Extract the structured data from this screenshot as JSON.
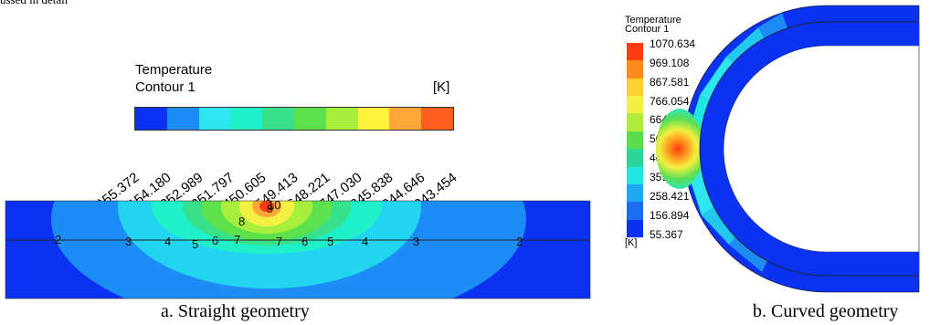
{
  "top_cut_text": "ussed in detail",
  "straight": {
    "legend_title": "Temperature",
    "legend_subtitle": "Contour 1",
    "legend_unit": "[K]",
    "legend_colors": [
      "#0a32f0",
      "#1e8cf5",
      "#2ee6f0",
      "#20f0c8",
      "#38e08c",
      "#5ce04c",
      "#a8ee3c",
      "#fff23c",
      "#ffa838",
      "#ff5e1c"
    ],
    "legend_labels": [
      "(1)55.372",
      "(2)154.180",
      "(3)252.989",
      "(4)351.797",
      "(5)450.605",
      "(6)549.413",
      "(7)648.221",
      "(8)747.030",
      "(9)845.838",
      "(10)944.646",
      "(11)1043.454"
    ],
    "contour_labels": [
      "2",
      "3",
      "4",
      "5",
      "6",
      "7",
      "8",
      "9",
      "10",
      "7",
      "6",
      "5",
      "4",
      "3",
      "2"
    ],
    "caption": "a. Straight geometry"
  },
  "curved": {
    "legend_title": "Temperature",
    "legend_subtitle": "Contour 1",
    "legend_unit": "[K]",
    "legend_colors": [
      "#ff3b10",
      "#ff8a1c",
      "#ffd030",
      "#f2f040",
      "#b0ec3c",
      "#5ade50",
      "#2cd69a",
      "#22e6e2",
      "#1ea8f4",
      "#1a6ef2",
      "#0a32f0"
    ],
    "legend_values": [
      "1070.634",
      "969.108",
      "867.581",
      "766.054",
      "664.527",
      "563.001",
      "461.474",
      "359.947",
      "258.421",
      "156.894",
      "55.367"
    ],
    "caption": "b. Curved geometry"
  },
  "colors": {
    "base_blue": "#0a32f0",
    "plate_line": "#222222"
  }
}
